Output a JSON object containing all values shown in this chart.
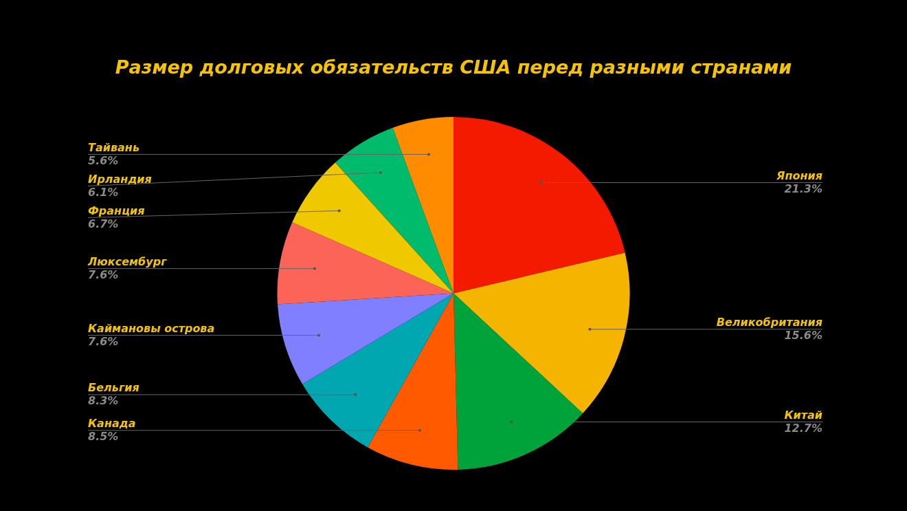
{
  "chart_data": {
    "type": "pie",
    "title": "Размер долговых обязательств США перед разными странами",
    "categories": [
      "Япония",
      "Великобритания",
      "Китай",
      "Канада",
      "Бельгия",
      "Каймановы острова",
      "Люксембург",
      "Франция",
      "Ирландия",
      "Тайвань"
    ],
    "values": [
      21.3,
      15.6,
      12.7,
      8.5,
      8.3,
      7.6,
      7.6,
      6.7,
      6.1,
      5.6
    ],
    "value_labels": [
      "21.3%",
      "15.6%",
      "12.7%",
      "8.5%",
      "8.3%",
      "7.6%",
      "7.6%",
      "6.7%",
      "6.1%",
      "5.6%"
    ],
    "colors": [
      "#f31a00",
      "#f5b400",
      "#00a33a",
      "#ff5a00",
      "#00a7b0",
      "#7f7fff",
      "#fb6456",
      "#f0c800",
      "#00bb6b",
      "#ff8c00"
    ],
    "legend": false
  }
}
